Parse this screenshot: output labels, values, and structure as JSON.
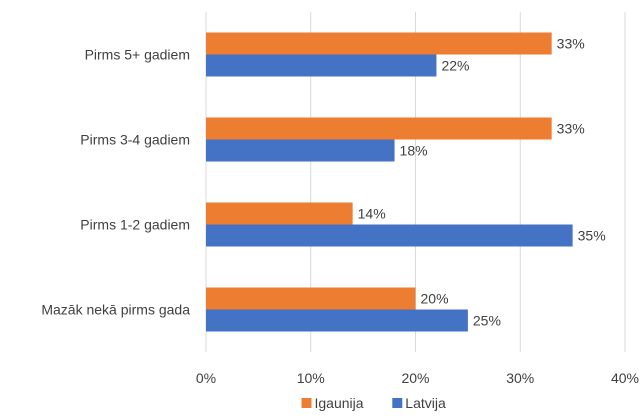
{
  "chart_data": {
    "type": "bar",
    "orientation": "horizontal",
    "categories": [
      "Pirms 5+ gadiem",
      "Pirms 3-4 gadiem",
      "Pirms 1-2 gadiem",
      "Mazāk nekā pirms gada"
    ],
    "series": [
      {
        "name": "Igaunija",
        "values": [
          33,
          33,
          14,
          20
        ],
        "labels": [
          "33%",
          "33%",
          "14%",
          "20%"
        ],
        "color": "#ED7D31"
      },
      {
        "name": "Latvija",
        "values": [
          22,
          18,
          35,
          25
        ],
        "labels": [
          "22%",
          "18%",
          "35%",
          "25%"
        ],
        "color": "#4472C4"
      }
    ],
    "xlim": [
      0,
      40
    ],
    "xticks": [
      0,
      10,
      20,
      30,
      40
    ],
    "xtick_labels": [
      "0%",
      "10%",
      "20%",
      "30%",
      "40%"
    ],
    "grid": "vertical",
    "legend": "bottom",
    "title": "",
    "xlabel": "",
    "ylabel": ""
  }
}
